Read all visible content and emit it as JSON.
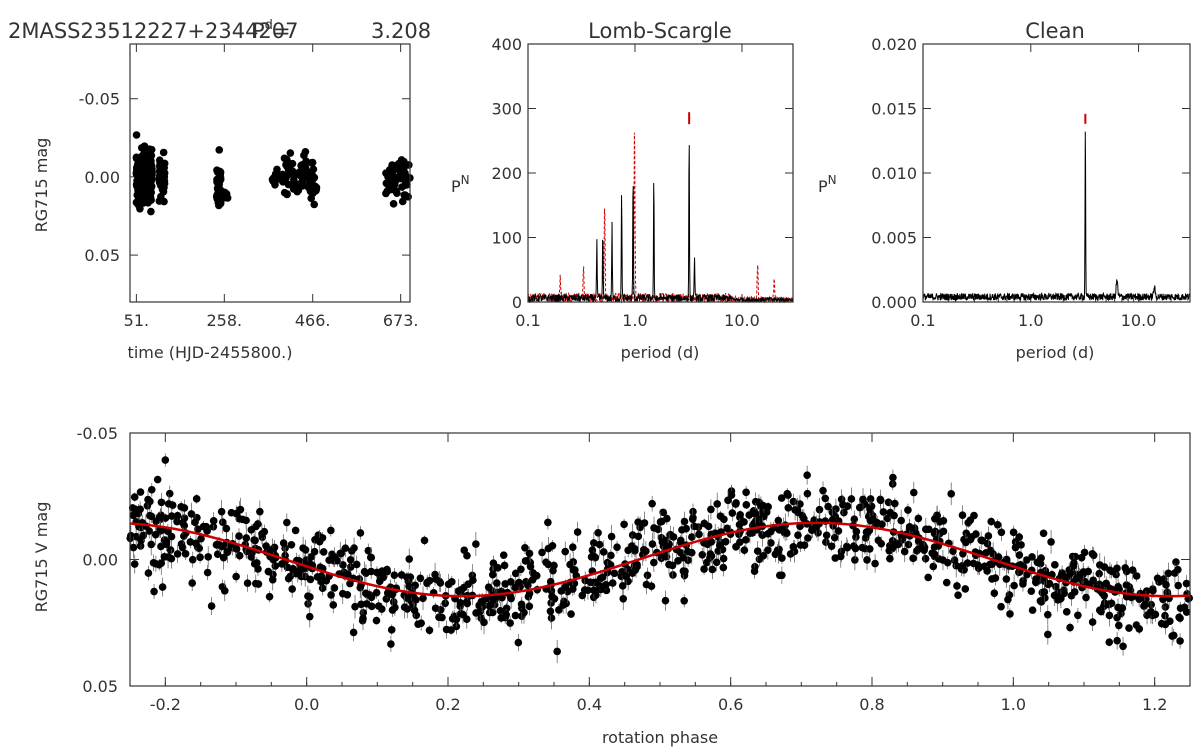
{
  "header": {
    "star": "2MASS23512227+2344207",
    "period_label": "P",
    "period_sup": "d",
    "period_eq": "=",
    "period_value": "3.208"
  },
  "colors": {
    "data": "#000000",
    "fit": "#cc0000",
    "axis": "#333333",
    "ls_alt": "#cc0000"
  },
  "chart_data": [
    {
      "id": "lightcurve",
      "type": "scatter",
      "title": "",
      "xlabel": "time (HJD-2455800.)",
      "ylabel": "RG715 mag",
      "xlim": [
        36,
        695
      ],
      "ylim": [
        0.08,
        -0.085
      ],
      "xticks": [
        "51.",
        "258.",
        "466.",
        "673."
      ],
      "yticks": [
        "-0.05",
        "0.00",
        "0.05"
      ],
      "segments": [
        {
          "t_start": 51,
          "t_end": 88,
          "center": 0.0,
          "spread": 0.014,
          "count": 260
        },
        {
          "t_start": 105,
          "t_end": 118,
          "center": -0.001,
          "spread": 0.011,
          "count": 60
        },
        {
          "t_start": 240,
          "t_end": 250,
          "center": 0.005,
          "spread": 0.014,
          "count": 40
        },
        {
          "t_start": 258,
          "t_end": 268,
          "center": 0.012,
          "spread": 0.004,
          "count": 6
        },
        {
          "t_start": 370,
          "t_end": 385,
          "center": 0.0,
          "spread": 0.007,
          "count": 10
        },
        {
          "t_start": 395,
          "t_end": 452,
          "center": -0.002,
          "spread": 0.01,
          "count": 55
        },
        {
          "t_start": 455,
          "t_end": 475,
          "center": 0.003,
          "spread": 0.012,
          "count": 28
        },
        {
          "t_start": 638,
          "t_end": 695,
          "center": 0.001,
          "spread": 0.014,
          "count": 60
        }
      ]
    },
    {
      "id": "lomb-scargle",
      "type": "line",
      "title": "Lomb-Scargle",
      "xlabel": "period (d)",
      "ylabel": "P_N",
      "xscale": "log",
      "xlim": [
        0.1,
        30
      ],
      "ylim": [
        0,
        400
      ],
      "xticks": [
        "0.1",
        "1.0",
        "10.0"
      ],
      "yticks": [
        "0",
        "100",
        "200",
        "300",
        "400"
      ],
      "peaks": [
        {
          "period": 0.44,
          "power": 90
        },
        {
          "period": 0.5,
          "power": 112
        },
        {
          "period": 0.61,
          "power": 118
        },
        {
          "period": 0.75,
          "power": 175
        },
        {
          "period": 0.96,
          "power": 200
        },
        {
          "period": 1.5,
          "power": 190
        },
        {
          "period": 3.208,
          "power": 262
        },
        {
          "period": 3.6,
          "power": 70
        }
      ],
      "window_peaks": [
        {
          "period": 0.52,
          "power": 148
        },
        {
          "period": 0.99,
          "power": 262
        },
        {
          "period": 0.33,
          "power": 45
        },
        {
          "period": 0.2,
          "power": 30
        },
        {
          "period": 14,
          "power": 55
        },
        {
          "period": 20,
          "power": 30
        }
      ],
      "marker": {
        "period": 3.208,
        "power": 285
      }
    },
    {
      "id": "clean",
      "type": "line",
      "title": "Clean",
      "xlabel": "period (d)",
      "ylabel": "P_N",
      "xscale": "log",
      "xlim": [
        0.1,
        30
      ],
      "ylim": [
        0,
        0.02
      ],
      "xticks": [
        "0.1",
        "1.0",
        "10.0"
      ],
      "yticks": [
        "0.000",
        "0.005",
        "0.010",
        "0.015",
        "0.020"
      ],
      "noise_level": 0.0004,
      "peak": {
        "period": 3.208,
        "power": 0.0131
      },
      "secondary": [
        {
          "period": 6.3,
          "power": 0.0013
        },
        {
          "period": 14,
          "power": 0.0007
        }
      ],
      "marker": {
        "period": 3.208,
        "power": 0.0142
      }
    },
    {
      "id": "phased",
      "type": "scatter",
      "title": "",
      "xlabel": "rotation phase",
      "ylabel": "RG715 V mag",
      "xlim": [
        -0.25,
        1.25
      ],
      "ylim": [
        0.05,
        -0.05
      ],
      "xticks": [
        "-0.2",
        "0.0",
        "0.2",
        "0.4",
        "0.6",
        "0.8",
        "1.0",
        "1.2"
      ],
      "yticks": [
        "-0.05",
        "0.00",
        "0.05"
      ],
      "fit": {
        "type": "sine",
        "amplitude": 0.0145,
        "offset": 0.0,
        "phase_of_min_mag": 0.72
      },
      "scatter_sigma": 0.008,
      "point_count": 1100
    }
  ]
}
